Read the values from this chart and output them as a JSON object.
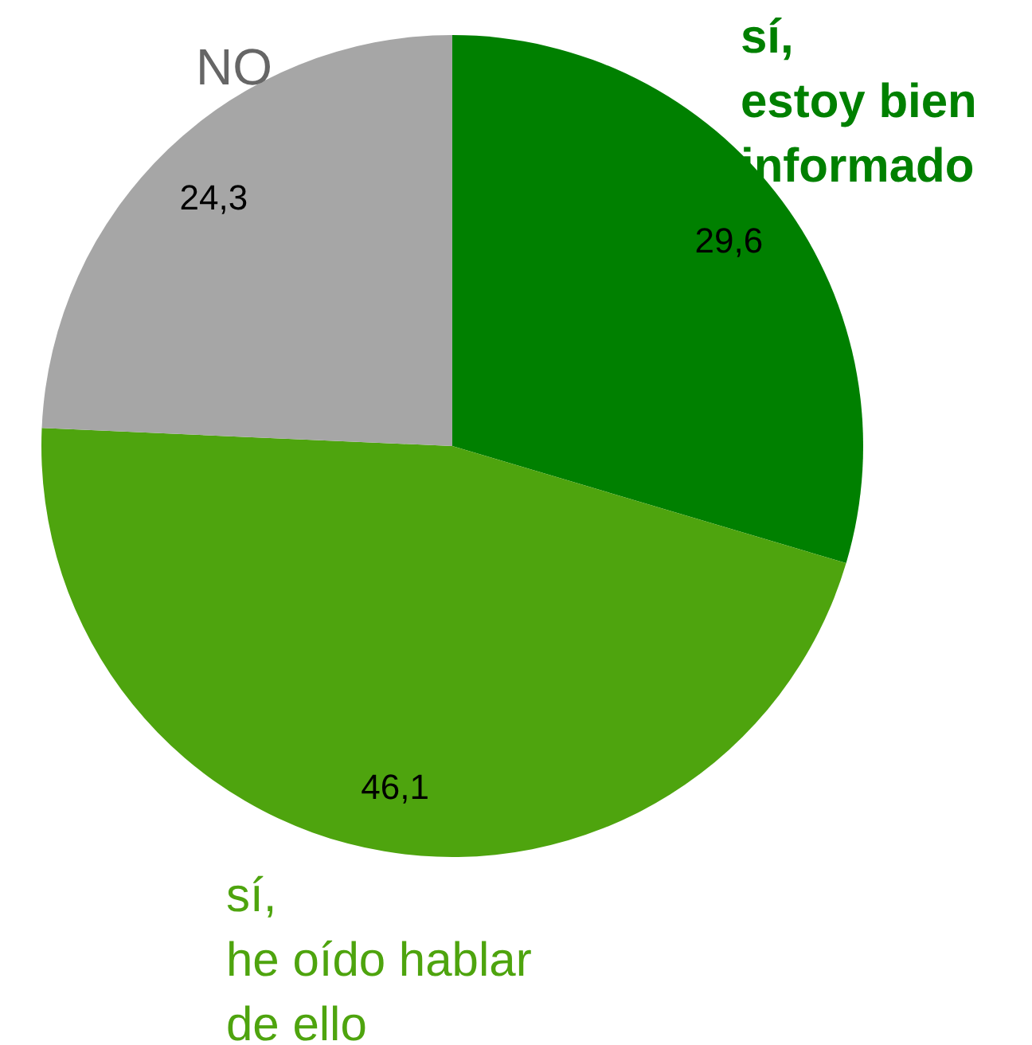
{
  "chart_data": {
    "type": "pie",
    "categories": [
      "sí,\nestoy bien\ninformado",
      "sí,\nhe oído hablar\nde ello",
      "NO"
    ],
    "values": [
      29.6,
      46.1,
      24.3
    ],
    "colors": [
      "#008000",
      "#4ea40e",
      "#a6a6a6"
    ],
    "value_labels": [
      "29,6",
      "46,1",
      "24,3"
    ],
    "legend": false
  }
}
